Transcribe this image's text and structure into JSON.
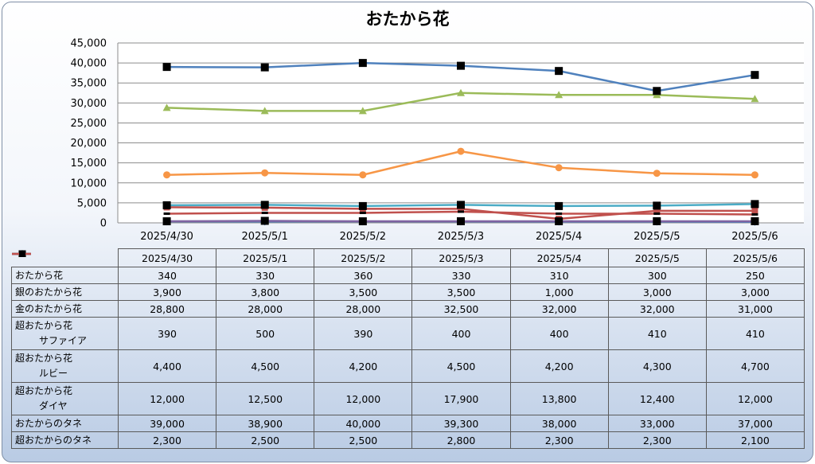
{
  "chart_data": {
    "type": "line",
    "title": "おたから花",
    "categories": [
      "2025/4/30",
      "2025/5/1",
      "2025/5/2",
      "2025/5/3",
      "2025/5/4",
      "2025/5/5",
      "2025/5/6"
    ],
    "ylim": [
      0,
      45000
    ],
    "yticks": [
      "0",
      "5,000",
      "10,000",
      "15,000",
      "20,000",
      "25,000",
      "30,000",
      "35,000",
      "40,000",
      "45,000"
    ],
    "legend": "data-table",
    "grid": true,
    "series": [
      {
        "name": "おたから花",
        "color": "#4f81bd",
        "marker": "diamond",
        "values": [
          340,
          330,
          360,
          330,
          310,
          300,
          250
        ],
        "labels": [
          "340",
          "330",
          "360",
          "330",
          "310",
          "300",
          "250"
        ]
      },
      {
        "name": "銀のおたから花",
        "color": "#c0504d",
        "marker": "square",
        "values": [
          3900,
          3800,
          3500,
          3500,
          1000,
          3000,
          3000
        ],
        "labels": [
          "3,900",
          "3,800",
          "3,500",
          "3,500",
          "1,000",
          "3,000",
          "3,000"
        ]
      },
      {
        "name": "金のおたから花",
        "color": "#9bbb59",
        "marker": "triangle",
        "values": [
          28800,
          28000,
          28000,
          32500,
          32000,
          32000,
          31000
        ],
        "labels": [
          "28,800",
          "28,000",
          "28,000",
          "32,500",
          "32,000",
          "32,000",
          "31,000"
        ]
      },
      {
        "name": "超おたから花",
        "name2": "サファイア",
        "color": "#8064a2",
        "marker": "blacksquare",
        "values": [
          390,
          500,
          390,
          400,
          400,
          410,
          410
        ],
        "labels": [
          "390",
          "500",
          "390",
          "400",
          "400",
          "410",
          "410"
        ]
      },
      {
        "name": "超おたから花",
        "name2": "ルビー",
        "color": "#4bacc6",
        "marker": "blacksquare",
        "values": [
          4400,
          4500,
          4200,
          4500,
          4200,
          4300,
          4700
        ],
        "labels": [
          "4,400",
          "4,500",
          "4,200",
          "4,500",
          "4,200",
          "4,300",
          "4,700"
        ]
      },
      {
        "name": "超おたから花",
        "name2": "ダイヤ",
        "color": "#f79646",
        "marker": "circle",
        "values": [
          12000,
          12500,
          12000,
          17900,
          13800,
          12400,
          12000
        ],
        "labels": [
          "12,000",
          "12,500",
          "12,000",
          "17,900",
          "13,800",
          "12,400",
          "12,000"
        ]
      },
      {
        "name": "おたからのタネ",
        "color": "#4f81bd",
        "marker": "blacksquare",
        "values": [
          39000,
          38900,
          40000,
          39300,
          38000,
          33000,
          37000
        ],
        "labels": [
          "39,000",
          "38,900",
          "40,000",
          "39,300",
          "38,000",
          "33,000",
          "37,000"
        ]
      },
      {
        "name": "超おたからのタネ",
        "color": "#c0504d",
        "marker": "dash",
        "values": [
          2300,
          2500,
          2500,
          2800,
          2300,
          2300,
          2100
        ],
        "labels": [
          "2,300",
          "2,500",
          "2,500",
          "2,800",
          "2,300",
          "2,300",
          "2,100"
        ]
      }
    ]
  }
}
